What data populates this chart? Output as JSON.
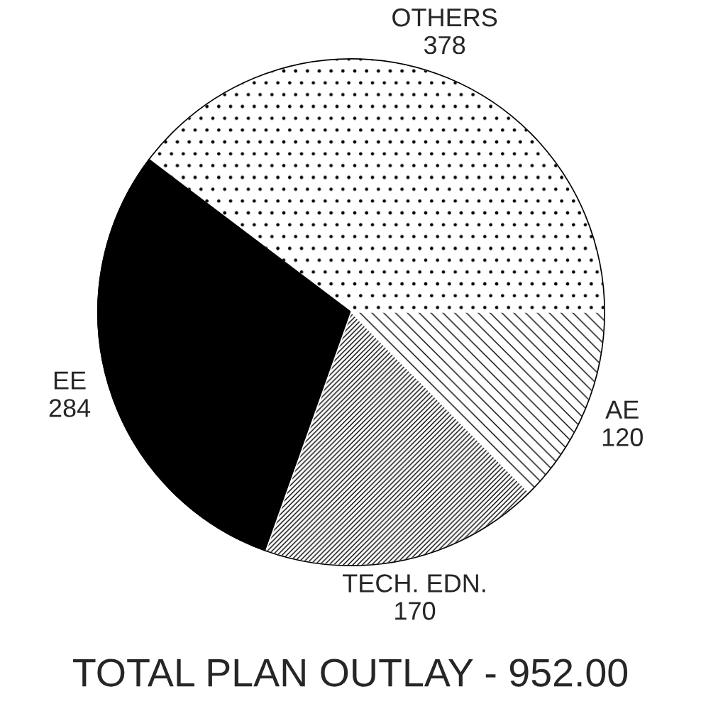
{
  "chart_data": {
    "type": "pie",
    "title": "TOTAL PLAN OUTLAY - 952.00",
    "categories": [
      "OTHERS",
      "EE",
      "TECH. EDN.",
      "AE"
    ],
    "values": [
      378,
      284,
      170,
      120
    ],
    "colors": [
      "#ffffff",
      "#000000",
      "#ffffff",
      "#ffffff"
    ],
    "data_labels": true
  }
}
